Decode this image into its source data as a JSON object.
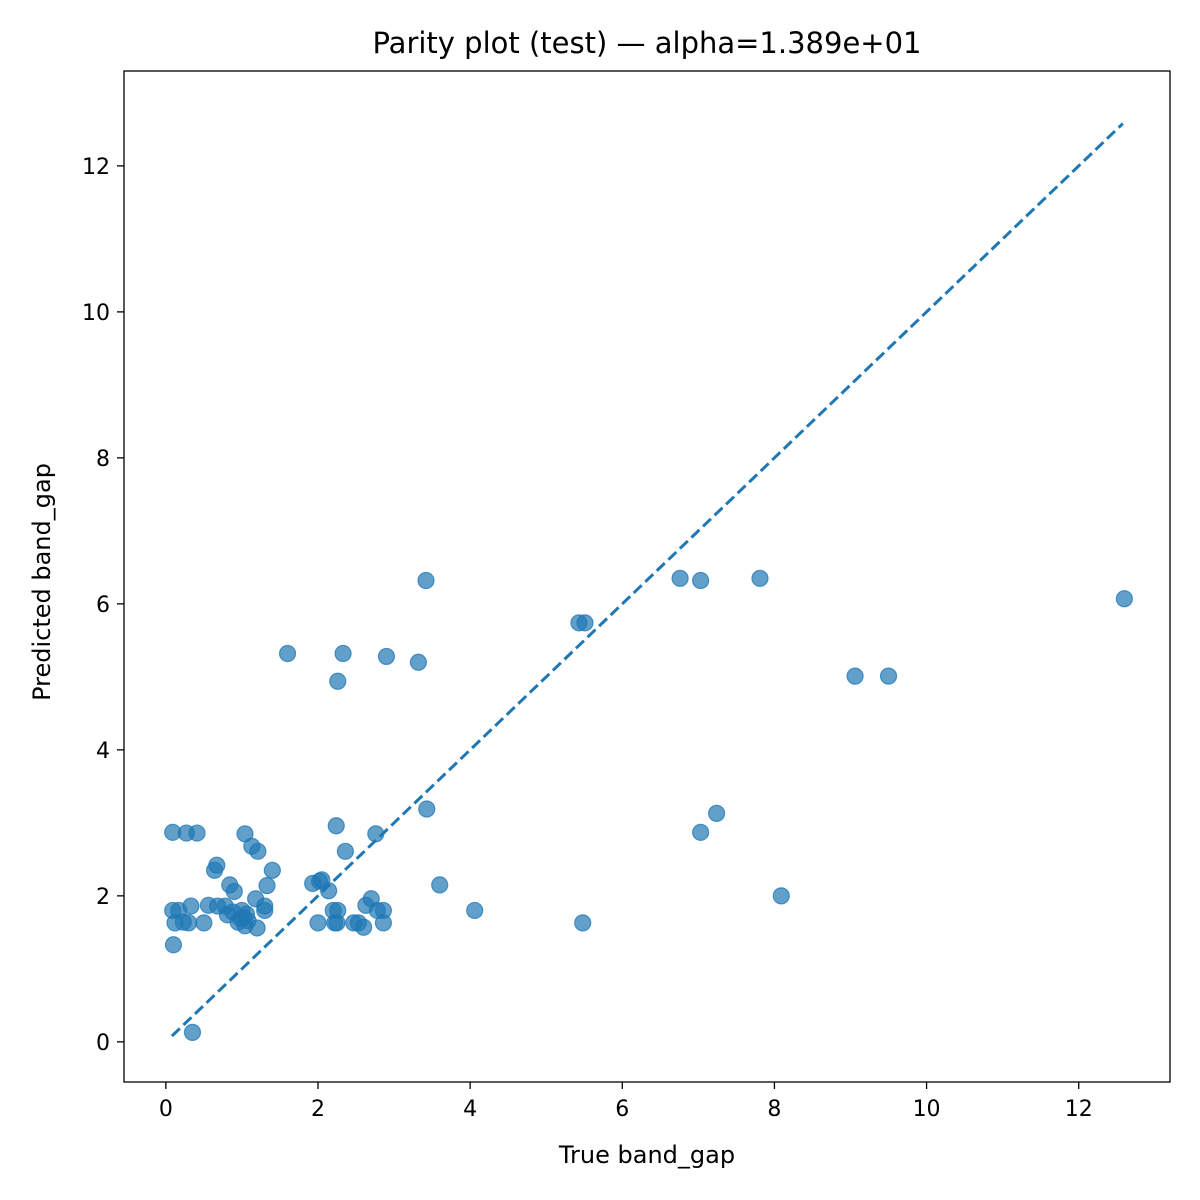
{
  "chart_data": {
    "type": "scatter",
    "title": "Parity plot (test) — alpha=1.389e+01",
    "xlabel": "True band_gap",
    "ylabel": "Predicted band_gap",
    "xlim": [
      -0.55,
      13.2
    ],
    "ylim": [
      -0.55,
      13.3
    ],
    "xticks": [
      0,
      2,
      4,
      6,
      8,
      10,
      12
    ],
    "yticks": [
      0,
      2,
      4,
      6,
      8,
      10,
      12
    ],
    "grid": false,
    "marker_color": "#1f77b4",
    "parity_line": {
      "from": [
        0.08,
        0.08
      ],
      "to": [
        12.58,
        12.58
      ],
      "style": "dashed"
    },
    "points": [
      [
        0.09,
        2.87
      ],
      [
        0.27,
        2.86
      ],
      [
        0.41,
        2.86
      ],
      [
        0.09,
        1.8
      ],
      [
        0.17,
        1.8
      ],
      [
        0.12,
        1.63
      ],
      [
        0.23,
        1.64
      ],
      [
        0.3,
        1.63
      ],
      [
        0.33,
        1.86
      ],
      [
        0.1,
        1.33
      ],
      [
        0.35,
        0.13
      ],
      [
        0.5,
        1.63
      ],
      [
        0.56,
        1.87
      ],
      [
        0.64,
        2.35
      ],
      [
        0.67,
        2.42
      ],
      [
        0.68,
        1.86
      ],
      [
        0.78,
        1.86
      ],
      [
        0.81,
        1.74
      ],
      [
        0.84,
        2.15
      ],
      [
        0.9,
        2.06
      ],
      [
        0.88,
        1.78
      ],
      [
        0.95,
        1.64
      ],
      [
        0.98,
        1.69
      ],
      [
        1.0,
        1.8
      ],
      [
        1.02,
        1.7
      ],
      [
        1.04,
        1.59
      ],
      [
        1.06,
        1.75
      ],
      [
        1.08,
        1.66
      ],
      [
        1.04,
        2.85
      ],
      [
        1.13,
        2.68
      ],
      [
        1.21,
        2.61
      ],
      [
        1.18,
        1.96
      ],
      [
        1.2,
        1.56
      ],
      [
        1.3,
        1.8
      ],
      [
        1.3,
        1.86
      ],
      [
        1.33,
        2.14
      ],
      [
        1.4,
        2.35
      ],
      [
        1.6,
        5.32
      ],
      [
        1.93,
        2.17
      ],
      [
        2.0,
        1.63
      ],
      [
        2.02,
        2.2
      ],
      [
        2.05,
        2.22
      ],
      [
        2.14,
        2.07
      ],
      [
        2.2,
        1.8
      ],
      [
        2.22,
        1.63
      ],
      [
        2.25,
        1.63
      ],
      [
        2.26,
        1.8
      ],
      [
        2.24,
        2.96
      ],
      [
        2.26,
        4.94
      ],
      [
        2.33,
        5.32
      ],
      [
        2.36,
        2.61
      ],
      [
        2.47,
        1.63
      ],
      [
        2.53,
        1.63
      ],
      [
        2.6,
        1.57
      ],
      [
        2.63,
        1.87
      ],
      [
        2.7,
        1.96
      ],
      [
        2.76,
        2.85
      ],
      [
        2.78,
        1.8
      ],
      [
        2.86,
        1.8
      ],
      [
        2.86,
        1.63
      ],
      [
        2.9,
        5.28
      ],
      [
        3.32,
        5.2
      ],
      [
        3.43,
        3.19
      ],
      [
        3.42,
        6.32
      ],
      [
        3.6,
        2.15
      ],
      [
        4.06,
        1.8
      ],
      [
        5.43,
        5.74
      ],
      [
        5.51,
        5.74
      ],
      [
        5.48,
        1.63
      ],
      [
        6.76,
        6.35
      ],
      [
        7.03,
        6.32
      ],
      [
        7.03,
        2.87
      ],
      [
        7.24,
        3.13
      ],
      [
        7.81,
        6.35
      ],
      [
        8.09,
        2.0
      ],
      [
        9.06,
        5.01
      ],
      [
        9.5,
        5.01
      ],
      [
        12.6,
        6.07
      ]
    ]
  }
}
